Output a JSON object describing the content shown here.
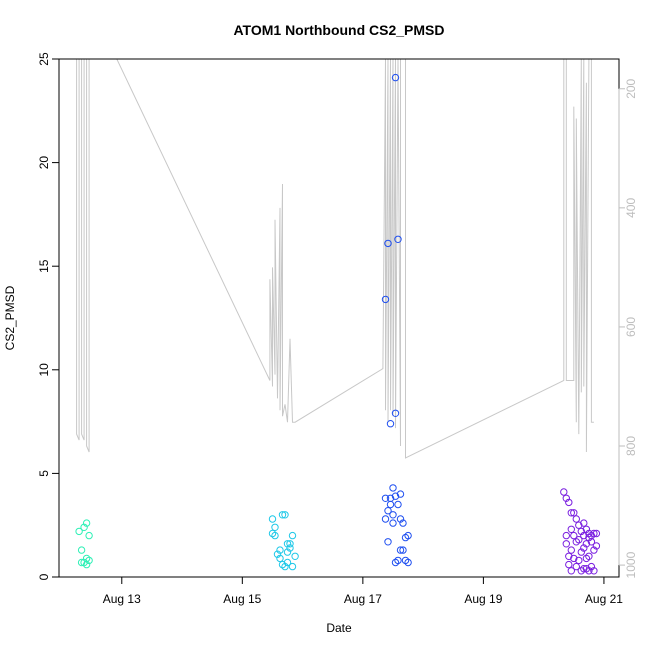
{
  "chart_data": {
    "type": "scatter",
    "title": "ATOM1 Northbound CS2_PMSD",
    "xlabel": "Date",
    "ylabel": "CS2_PMSD",
    "xlim": [
      "2022-08-11T23:00",
      "2022-08-21T06:00"
    ],
    "ylim": [
      0,
      25
    ],
    "x_ticks": [
      {
        "x": "2022-08-13T00:00",
        "label": "Aug 13"
      },
      {
        "x": "2022-08-15T00:00",
        "label": "Aug 15"
      },
      {
        "x": "2022-08-17T00:00",
        "label": "Aug 17"
      },
      {
        "x": "2022-08-19T00:00",
        "label": "Aug 19"
      },
      {
        "x": "2022-08-21T00:00",
        "label": "Aug 21"
      }
    ],
    "y_ticks": [
      0,
      5,
      10,
      15,
      20,
      25
    ],
    "y2_ticks": [
      200,
      400,
      600,
      800,
      1000
    ],
    "y2_lim": [
      1020,
      150
    ],
    "y2_reversed": true,
    "y2_color": "#bdbdbd",
    "line_color": "#c8c8c8",
    "grid": false,
    "legend": "none",
    "series": [
      {
        "color": "#2ef0b6",
        "points": [
          [
            "2022-08-12T07:00",
            2.2
          ],
          [
            "2022-08-12T08:00",
            0.7
          ],
          [
            "2022-08-12T08:00",
            1.3
          ],
          [
            "2022-08-12T09:00",
            2.4
          ],
          [
            "2022-08-12T09:00",
            0.7
          ],
          [
            "2022-08-12T10:00",
            0.9
          ],
          [
            "2022-08-12T10:00",
            0.6
          ],
          [
            "2022-08-12T10:00",
            2.6
          ],
          [
            "2022-08-12T11:00",
            2.0
          ],
          [
            "2022-08-12T11:00",
            0.8
          ]
        ]
      },
      {
        "color": "#1ec8e8",
        "points": [
          [
            "2022-08-15T12:00",
            2.8
          ],
          [
            "2022-08-15T12:00",
            2.1
          ],
          [
            "2022-08-15T13:00",
            2.0
          ],
          [
            "2022-08-15T13:00",
            2.4
          ],
          [
            "2022-08-15T14:00",
            1.1
          ],
          [
            "2022-08-15T15:00",
            0.9
          ],
          [
            "2022-08-15T15:00",
            1.3
          ],
          [
            "2022-08-15T16:00",
            3.0
          ],
          [
            "2022-08-15T16:00",
            0.6
          ],
          [
            "2022-08-15T17:00",
            3.0
          ],
          [
            "2022-08-15T17:00",
            0.5
          ],
          [
            "2022-08-15T18:00",
            1.2
          ],
          [
            "2022-08-15T18:00",
            1.6
          ],
          [
            "2022-08-15T18:00",
            0.7
          ],
          [
            "2022-08-15T19:00",
            1.4
          ],
          [
            "2022-08-15T19:00",
            1.6
          ],
          [
            "2022-08-15T20:00",
            2.0
          ],
          [
            "2022-08-15T20:00",
            0.5
          ],
          [
            "2022-08-15T21:00",
            1.0
          ]
        ]
      },
      {
        "color": "#1f4ff0",
        "points": [
          [
            "2022-08-17T09:00",
            13.4
          ],
          [
            "2022-08-17T09:00",
            3.8
          ],
          [
            "2022-08-17T09:00",
            2.8
          ],
          [
            "2022-08-17T10:00",
            3.2
          ],
          [
            "2022-08-17T10:00",
            1.7
          ],
          [
            "2022-08-17T10:00",
            16.1
          ],
          [
            "2022-08-17T11:00",
            3.5
          ],
          [
            "2022-08-17T11:00",
            7.4
          ],
          [
            "2022-08-17T11:00",
            3.8
          ],
          [
            "2022-08-17T12:00",
            4.3
          ],
          [
            "2022-08-17T12:00",
            3.0
          ],
          [
            "2022-08-17T12:00",
            2.6
          ],
          [
            "2022-08-17T13:00",
            3.9
          ],
          [
            "2022-08-17T13:00",
            24.1
          ],
          [
            "2022-08-17T13:00",
            7.9
          ],
          [
            "2022-08-17T13:00",
            0.7
          ],
          [
            "2022-08-17T14:00",
            16.3
          ],
          [
            "2022-08-17T14:00",
            3.5
          ],
          [
            "2022-08-17T14:00",
            0.8
          ],
          [
            "2022-08-17T15:00",
            4.0
          ],
          [
            "2022-08-17T15:00",
            2.8
          ],
          [
            "2022-08-17T15:00",
            1.3
          ],
          [
            "2022-08-17T16:00",
            2.6
          ],
          [
            "2022-08-17T16:00",
            1.3
          ],
          [
            "2022-08-17T17:00",
            1.9
          ],
          [
            "2022-08-17T17:00",
            0.8
          ],
          [
            "2022-08-17T18:00",
            2.0
          ],
          [
            "2022-08-17T18:00",
            0.7
          ]
        ]
      },
      {
        "color": "#7a1fe0",
        "points": [
          [
            "2022-08-20T08:00",
            4.1
          ],
          [
            "2022-08-20T09:00",
            3.8
          ],
          [
            "2022-08-20T09:00",
            2.0
          ],
          [
            "2022-08-20T09:00",
            1.6
          ],
          [
            "2022-08-20T10:00",
            3.6
          ],
          [
            "2022-08-20T10:00",
            1.0
          ],
          [
            "2022-08-20T10:00",
            0.6
          ],
          [
            "2022-08-20T11:00",
            3.1
          ],
          [
            "2022-08-20T11:00",
            2.3
          ],
          [
            "2022-08-20T11:00",
            1.3
          ],
          [
            "2022-08-20T11:00",
            0.3
          ],
          [
            "2022-08-20T12:00",
            3.1
          ],
          [
            "2022-08-20T12:00",
            2.0
          ],
          [
            "2022-08-20T12:00",
            0.9
          ],
          [
            "2022-08-20T13:00",
            2.8
          ],
          [
            "2022-08-20T13:00",
            1.7
          ],
          [
            "2022-08-20T13:00",
            0.5
          ],
          [
            "2022-08-20T14:00",
            2.5
          ],
          [
            "2022-08-20T14:00",
            1.8
          ],
          [
            "2022-08-20T14:00",
            0.8
          ],
          [
            "2022-08-20T15:00",
            2.2
          ],
          [
            "2022-08-20T15:00",
            1.2
          ],
          [
            "2022-08-20T15:00",
            0.3
          ],
          [
            "2022-08-20T16:00",
            2.6
          ],
          [
            "2022-08-20T16:00",
            2.0
          ],
          [
            "2022-08-20T16:00",
            1.4
          ],
          [
            "2022-08-20T16:00",
            0.4
          ],
          [
            "2022-08-20T17:00",
            2.3
          ],
          [
            "2022-08-20T17:00",
            1.6
          ],
          [
            "2022-08-20T17:00",
            0.9
          ],
          [
            "2022-08-20T17:00",
            0.4
          ],
          [
            "2022-08-20T18:00",
            2.1
          ],
          [
            "2022-08-20T18:00",
            1.9
          ],
          [
            "2022-08-20T18:00",
            1.0
          ],
          [
            "2022-08-20T18:00",
            0.3
          ],
          [
            "2022-08-20T19:00",
            2.0
          ],
          [
            "2022-08-20T19:00",
            1.7
          ],
          [
            "2022-08-20T19:00",
            0.5
          ],
          [
            "2022-08-20T20:00",
            2.1
          ],
          [
            "2022-08-20T20:00",
            1.3
          ],
          [
            "2022-08-20T20:00",
            0.3
          ],
          [
            "2022-08-20T21:00",
            2.1
          ],
          [
            "2022-08-20T21:00",
            1.5
          ]
        ]
      }
    ],
    "line": {
      "axis": "y2",
      "points": [
        [
          "2022-08-12T06:00",
          150
        ],
        [
          "2022-08-12T06:00",
          780
        ],
        [
          "2022-08-12T07:00",
          790
        ],
        [
          "2022-08-12T07:00",
          150
        ],
        [
          "2022-08-12T08:00",
          150
        ],
        [
          "2022-08-12T08:00",
          780
        ],
        [
          "2022-08-12T09:00",
          790
        ],
        [
          "2022-08-12T09:00",
          150
        ],
        [
          "2022-08-12T10:00",
          150
        ],
        [
          "2022-08-12T10:00",
          800
        ],
        [
          "2022-08-12T11:00",
          810
        ],
        [
          "2022-08-12T11:00",
          150
        ],
        [
          "2022-08-12T12:00",
          150
        ],
        [
          "2022-08-12T22:00",
          150
        ],
        [
          "2022-08-15T11:00",
          690
        ],
        [
          "2022-08-15T11:00",
          520
        ],
        [
          "2022-08-15T12:00",
          700
        ],
        [
          "2022-08-15T12:00",
          500
        ],
        [
          "2022-08-15T13:00",
          680
        ],
        [
          "2022-08-15T13:00",
          420
        ],
        [
          "2022-08-15T14:00",
          720
        ],
        [
          "2022-08-15T15:00",
          400
        ],
        [
          "2022-08-15T15:00",
          740
        ],
        [
          "2022-08-15T16:00",
          360
        ],
        [
          "2022-08-15T16:00",
          750
        ],
        [
          "2022-08-15T17:00",
          730
        ],
        [
          "2022-08-15T18:00",
          760
        ],
        [
          "2022-08-15T19:00",
          620
        ],
        [
          "2022-08-15T20:00",
          760
        ],
        [
          "2022-08-15T21:00",
          760
        ],
        [
          "2022-08-17T08:00",
          670
        ],
        [
          "2022-08-17T09:00",
          150
        ],
        [
          "2022-08-17T09:00",
          740
        ],
        [
          "2022-08-17T10:00",
          150
        ],
        [
          "2022-08-17T10:00",
          760
        ],
        [
          "2022-08-17T11:00",
          150
        ],
        [
          "2022-08-17T11:00",
          740
        ],
        [
          "2022-08-17T12:00",
          150
        ],
        [
          "2022-08-17T12:00",
          750
        ],
        [
          "2022-08-17T13:00",
          150
        ],
        [
          "2022-08-17T13:00",
          770
        ],
        [
          "2022-08-17T14:00",
          150
        ],
        [
          "2022-08-17T15:00",
          800
        ],
        [
          "2022-08-17T15:00",
          150
        ],
        [
          "2022-08-17T16:00",
          150
        ],
        [
          "2022-08-17T17:00",
          150
        ],
        [
          "2022-08-17T17:00",
          820
        ],
        [
          "2022-08-20T08:00",
          690
        ],
        [
          "2022-08-20T08:00",
          150
        ],
        [
          "2022-08-20T09:00",
          150
        ],
        [
          "2022-08-20T09:00",
          690
        ],
        [
          "2022-08-20T10:00",
          690
        ],
        [
          "2022-08-20T11:00",
          690
        ],
        [
          "2022-08-20T12:00",
          690
        ],
        [
          "2022-08-20T12:00",
          230
        ],
        [
          "2022-08-20T13:00",
          760
        ],
        [
          "2022-08-20T13:00",
          250
        ],
        [
          "2022-08-20T14:00",
          780
        ],
        [
          "2022-08-20T15:00",
          150
        ],
        [
          "2022-08-20T15:00",
          710
        ],
        [
          "2022-08-20T16:00",
          150
        ],
        [
          "2022-08-20T16:00",
          700
        ],
        [
          "2022-08-20T17:00",
          190
        ],
        [
          "2022-08-20T17:00",
          810
        ],
        [
          "2022-08-20T18:00",
          150
        ],
        [
          "2022-08-20T19:00",
          150
        ],
        [
          "2022-08-20T19:00",
          760
        ],
        [
          "2022-08-20T20:00",
          760
        ]
      ]
    }
  }
}
